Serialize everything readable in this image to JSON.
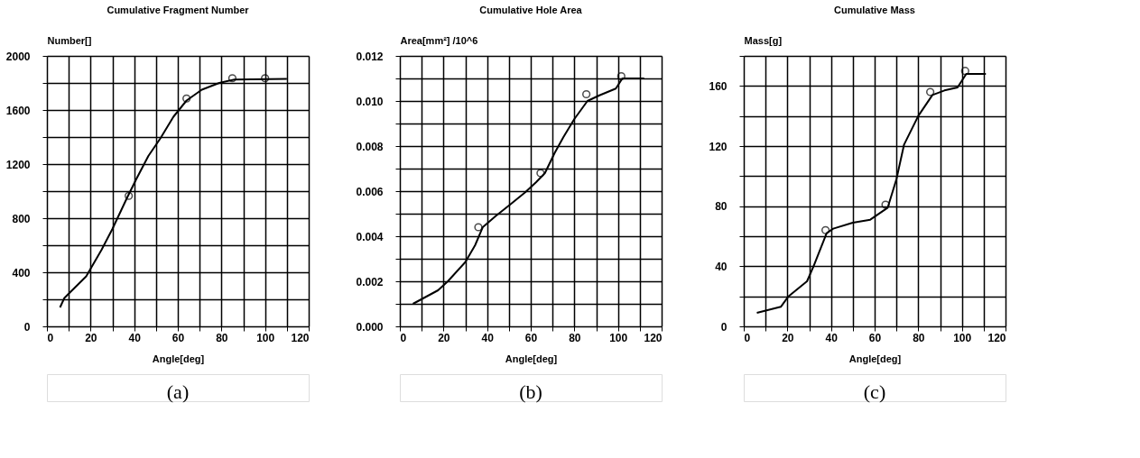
{
  "chart_data": [
    {
      "type": "line",
      "title": "Cumulative Fragment Number",
      "xlabel": "Angle[deg]",
      "ylabel": "Number[]",
      "xlim": [
        0,
        120
      ],
      "ylim": [
        0,
        2000
      ],
      "xticks": [
        0,
        {
          "value": 10,
          "label": null
        },
        20,
        {
          "value": 30,
          "label": null
        },
        40,
        {
          "value": 50,
          "label": null
        },
        60,
        {
          "value": 70,
          "label": null
        },
        80,
        {
          "value": 90,
          "label": null
        },
        100,
        {
          "value": 110,
          "label": null
        },
        120
      ],
      "yticks": [
        0,
        {
          "value": 200,
          "label": null
        },
        400,
        {
          "value": 600,
          "label": null
        },
        800,
        {
          "value": 1000,
          "label": null
        },
        1200,
        {
          "value": 1400,
          "label": null
        },
        1600,
        {
          "value": 1800,
          "label": null
        },
        2000
      ],
      "grid": true,
      "series": [
        {
          "type": "line",
          "color": "#000000",
          "marker": "none",
          "x": [
            6,
            8,
            18,
            25,
            30,
            37,
            41,
            46.5,
            52,
            58,
            64,
            71,
            79,
            86,
            110
          ],
          "values": [
            140,
            210,
            370,
            565,
            720,
            960,
            1090,
            1260,
            1390,
            1550,
            1670,
            1750,
            1800,
            1825,
            1830
          ]
        },
        {
          "type": "scatter",
          "color": "#000000",
          "marker": "circle",
          "x": [
            37.5,
            64,
            85,
            100
          ],
          "values": [
            965,
            1685,
            1835,
            1835
          ]
        }
      ],
      "annotations": [
        "(a)"
      ]
    },
    {
      "type": "line",
      "title": "Cumulative Hole Area",
      "xlabel": "Angle[deg]",
      "ylabel": "Area[mm²] /10^6",
      "xlim": [
        0,
        120
      ],
      "ylim": [
        0,
        0.012
      ],
      "xticks": [
        0,
        {
          "value": 10,
          "label": null
        },
        20,
        {
          "value": 30,
          "label": null
        },
        40,
        {
          "value": 50,
          "label": null
        },
        60,
        {
          "value": 70,
          "label": null
        },
        80,
        {
          "value": 90,
          "label": null
        },
        100,
        {
          "value": 110,
          "label": null
        },
        120
      ],
      "yticks": [
        {
          "value": 0,
          "label": "0.000"
        },
        {
          "value": 0.001,
          "label": null
        },
        0.002,
        {
          "value": 0.003,
          "label": null
        },
        0.004,
        {
          "value": 0.005,
          "label": null
        },
        0.006,
        {
          "value": 0.007,
          "label": null
        },
        0.008,
        {
          "value": 0.009,
          "label": null
        },
        {
          "value": 0.01,
          "label": "0.010"
        },
        {
          "value": 0.011,
          "label": null
        },
        0.012
      ],
      "grid": true,
      "series": [
        {
          "type": "line",
          "color": "#000000",
          "marker": "none",
          "x": [
            6,
            17.5,
            22,
            30,
            34.5,
            38,
            44,
            50.5,
            57.5,
            62.5,
            66.5,
            71,
            75,
            80,
            86,
            91.5,
            99,
            102,
            112
          ],
          "values": [
            0.001,
            0.0016,
            0.002,
            0.00285,
            0.0036,
            0.0044,
            0.0049,
            0.0054,
            0.00595,
            0.0064,
            0.0068,
            0.0077,
            0.0084,
            0.0092,
            0.01,
            0.01025,
            0.01055,
            0.011,
            0.011
          ]
        },
        {
          "type": "scatter",
          "color": "#000000",
          "marker": "circle",
          "x": [
            36,
            64.5,
            85.5,
            101.5
          ],
          "values": [
            0.0044,
            0.0068,
            0.0103,
            0.0111
          ]
        }
      ],
      "annotations": [
        "(b)"
      ]
    },
    {
      "type": "line",
      "title": "Cumulative Mass",
      "xlabel": "Angle[deg]",
      "ylabel": "Mass[g]",
      "xlim": [
        0,
        120
      ],
      "ylim": [
        0,
        180
      ],
      "xticks": [
        0,
        {
          "value": 10,
          "label": null
        },
        20,
        {
          "value": 30,
          "label": null
        },
        40,
        {
          "value": 50,
          "label": null
        },
        60,
        {
          "value": 70,
          "label": null
        },
        80,
        {
          "value": 90,
          "label": null
        },
        100,
        {
          "value": 110,
          "label": null
        },
        120
      ],
      "yticks": [
        0,
        {
          "value": 20,
          "label": null
        },
        40,
        {
          "value": 60,
          "label": null
        },
        80,
        {
          "value": 100,
          "label": null
        },
        120,
        {
          "value": 140,
          "label": null
        },
        160,
        {
          "value": 180,
          "label": null
        }
      ],
      "grid": true,
      "series": [
        {
          "type": "line",
          "color": "#000000",
          "marker": "none",
          "x": [
            6,
            17,
            20.5,
            29,
            32,
            38,
            41,
            50,
            58,
            66,
            70,
            73.5,
            80,
            86.5,
            92,
            98,
            102,
            111
          ],
          "values": [
            9,
            13,
            20,
            30,
            40,
            62,
            65,
            69,
            71,
            79,
            98,
            121,
            140,
            154,
            157,
            159,
            168,
            168
          ]
        },
        {
          "type": "scatter",
          "color": "#000000",
          "marker": "circle",
          "x": [
            37.5,
            65,
            85.5,
            101.5
          ],
          "values": [
            64,
            81,
            156,
            170
          ]
        }
      ],
      "annotations": [
        "(c)"
      ]
    }
  ]
}
